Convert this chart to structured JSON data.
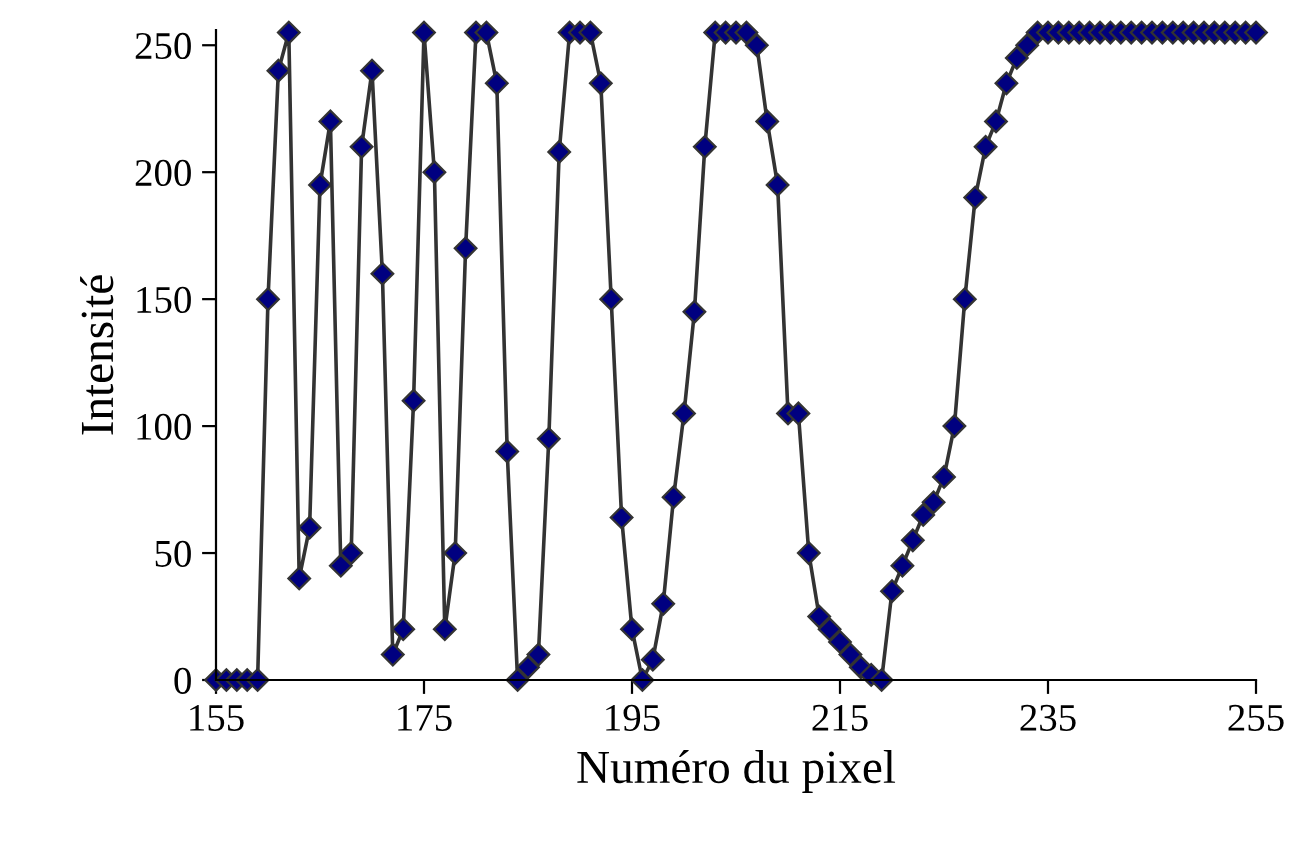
{
  "chart_data": {
    "type": "line",
    "xlabel": "Numéro du pixel",
    "ylabel": "Intensité",
    "x": [
      155,
      156,
      157,
      158,
      159,
      160,
      161,
      162,
      163,
      164,
      165,
      166,
      167,
      168,
      169,
      170,
      171,
      172,
      173,
      174,
      175,
      176,
      177,
      178,
      179,
      180,
      181,
      182,
      183,
      184,
      185,
      186,
      187,
      188,
      189,
      190,
      191,
      192,
      193,
      194,
      195,
      196,
      197,
      198,
      199,
      200,
      201,
      202,
      203,
      204,
      205,
      206,
      207,
      208,
      209,
      210,
      211,
      212,
      213,
      214,
      215,
      216,
      217,
      218,
      219,
      220,
      221,
      222,
      223,
      224,
      225,
      226,
      227,
      228,
      229,
      230,
      231,
      232,
      233,
      234,
      235,
      236,
      237,
      238,
      239,
      240,
      241,
      242,
      243,
      244,
      245,
      246,
      247,
      248,
      249,
      250,
      251,
      252,
      253,
      254,
      255
    ],
    "series": [
      {
        "color": "#000080",
        "values": [
          0,
          0,
          0,
          0,
          0,
          150,
          240,
          255,
          40,
          60,
          195,
          220,
          45,
          50,
          210,
          240,
          160,
          10,
          20,
          110,
          255,
          200,
          20,
          50,
          170,
          255,
          255,
          235,
          90,
          0,
          5,
          10,
          95,
          208,
          255,
          255,
          255,
          235,
          150,
          64,
          20,
          0,
          8,
          30,
          72,
          105,
          145,
          210,
          255,
          255,
          255,
          255,
          250,
          220,
          195,
          105,
          105,
          50,
          25,
          20,
          15,
          10,
          5,
          2,
          0,
          35,
          45,
          55,
          65,
          70,
          80,
          100,
          150,
          190,
          210,
          220,
          235,
          245,
          250,
          255,
          255,
          255,
          255,
          255,
          255,
          255,
          255,
          255,
          255,
          255,
          255,
          255,
          255,
          255,
          255,
          255,
          255,
          255,
          255,
          255,
          255
        ]
      }
    ],
    "xlim": [
      155,
      255
    ],
    "ylim": [
      0,
      256
    ],
    "xticks": [
      155,
      175,
      195,
      215,
      235,
      255
    ],
    "yticks": [
      0,
      50,
      100,
      150,
      200,
      250
    ],
    "marker": "diamond",
    "line_style": "solid",
    "grid": false,
    "legend": false
  }
}
